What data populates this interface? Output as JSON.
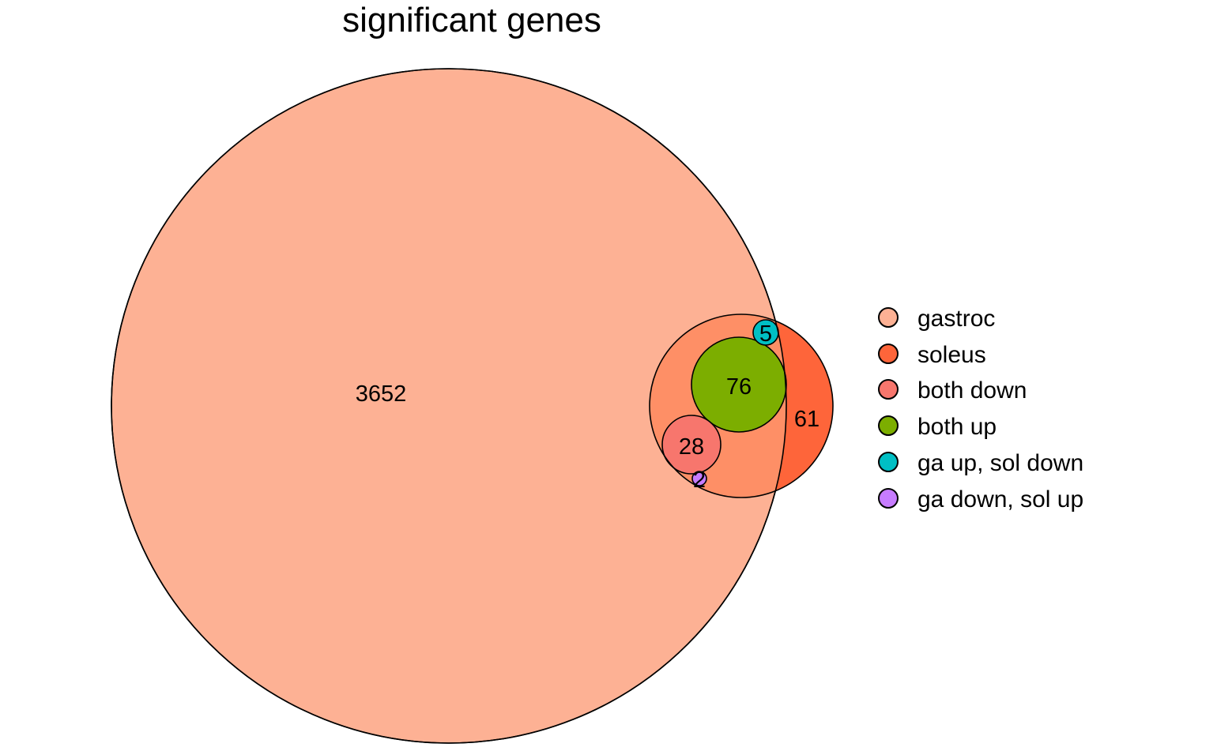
{
  "title": "significant genes",
  "sets": [
    {
      "name": "gastroc",
      "color": "#FDB194"
    },
    {
      "name": "soleus",
      "color": "#FE653A"
    },
    {
      "name": "both down",
      "color": "#F7766D"
    },
    {
      "name": "both up",
      "color": "#7CAE00"
    },
    {
      "name": "ga up, sol down",
      "color": "#00BFC4"
    },
    {
      "name": "ga down, sol up",
      "color": "#C77CFF"
    }
  ],
  "overlap_color": "#FE8F66",
  "region_counts": {
    "gastroc_only": "3652",
    "soleus_only": "61",
    "both_up": "76",
    "both_down": "28",
    "ga_up_sol_down": "5",
    "ga_down_sol_up": "2"
  }
}
